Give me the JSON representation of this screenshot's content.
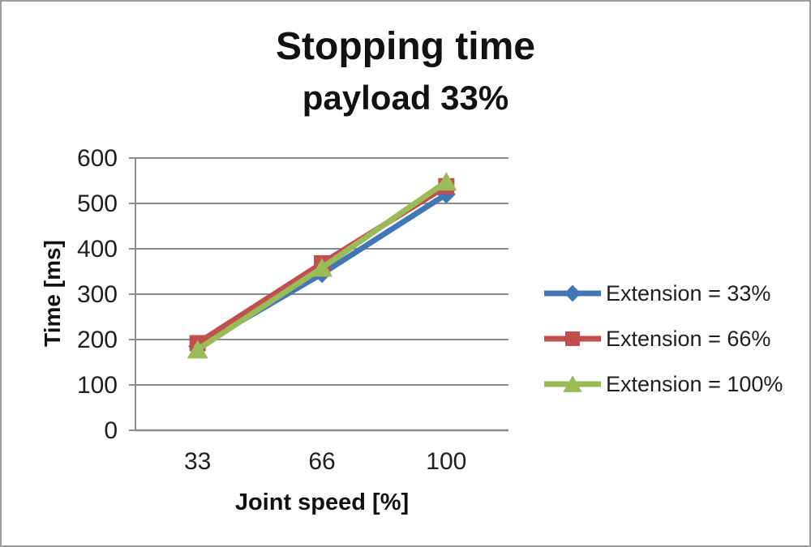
{
  "chart_data": {
    "type": "line",
    "title": "Stopping time",
    "subtitle": "payload 33%",
    "xlabel": "Joint speed [%]",
    "ylabel": "Time [ms]",
    "categories": [
      "33",
      "66",
      "100"
    ],
    "yticks": [
      0,
      100,
      200,
      300,
      400,
      500,
      600
    ],
    "ylim": [
      0,
      600
    ],
    "grid": true,
    "legend_position": "right",
    "series": [
      {
        "name": "Extension = 33%",
        "color": "#4177B4",
        "marker": "diamond",
        "values": [
          185,
          345,
          520
        ]
      },
      {
        "name": "Extension = 66%",
        "color": "#C0504D",
        "marker": "square",
        "values": [
          192,
          368,
          538
        ]
      },
      {
        "name": "Extension = 100%",
        "color": "#9BBB59",
        "marker": "triangle",
        "values": [
          178,
          358,
          548
        ]
      }
    ]
  },
  "colors": {
    "gridline": "#8C8C8C",
    "axis": "#8C8C8C",
    "text": "#1f1f1f",
    "frame_border": "#9c9c9c"
  }
}
